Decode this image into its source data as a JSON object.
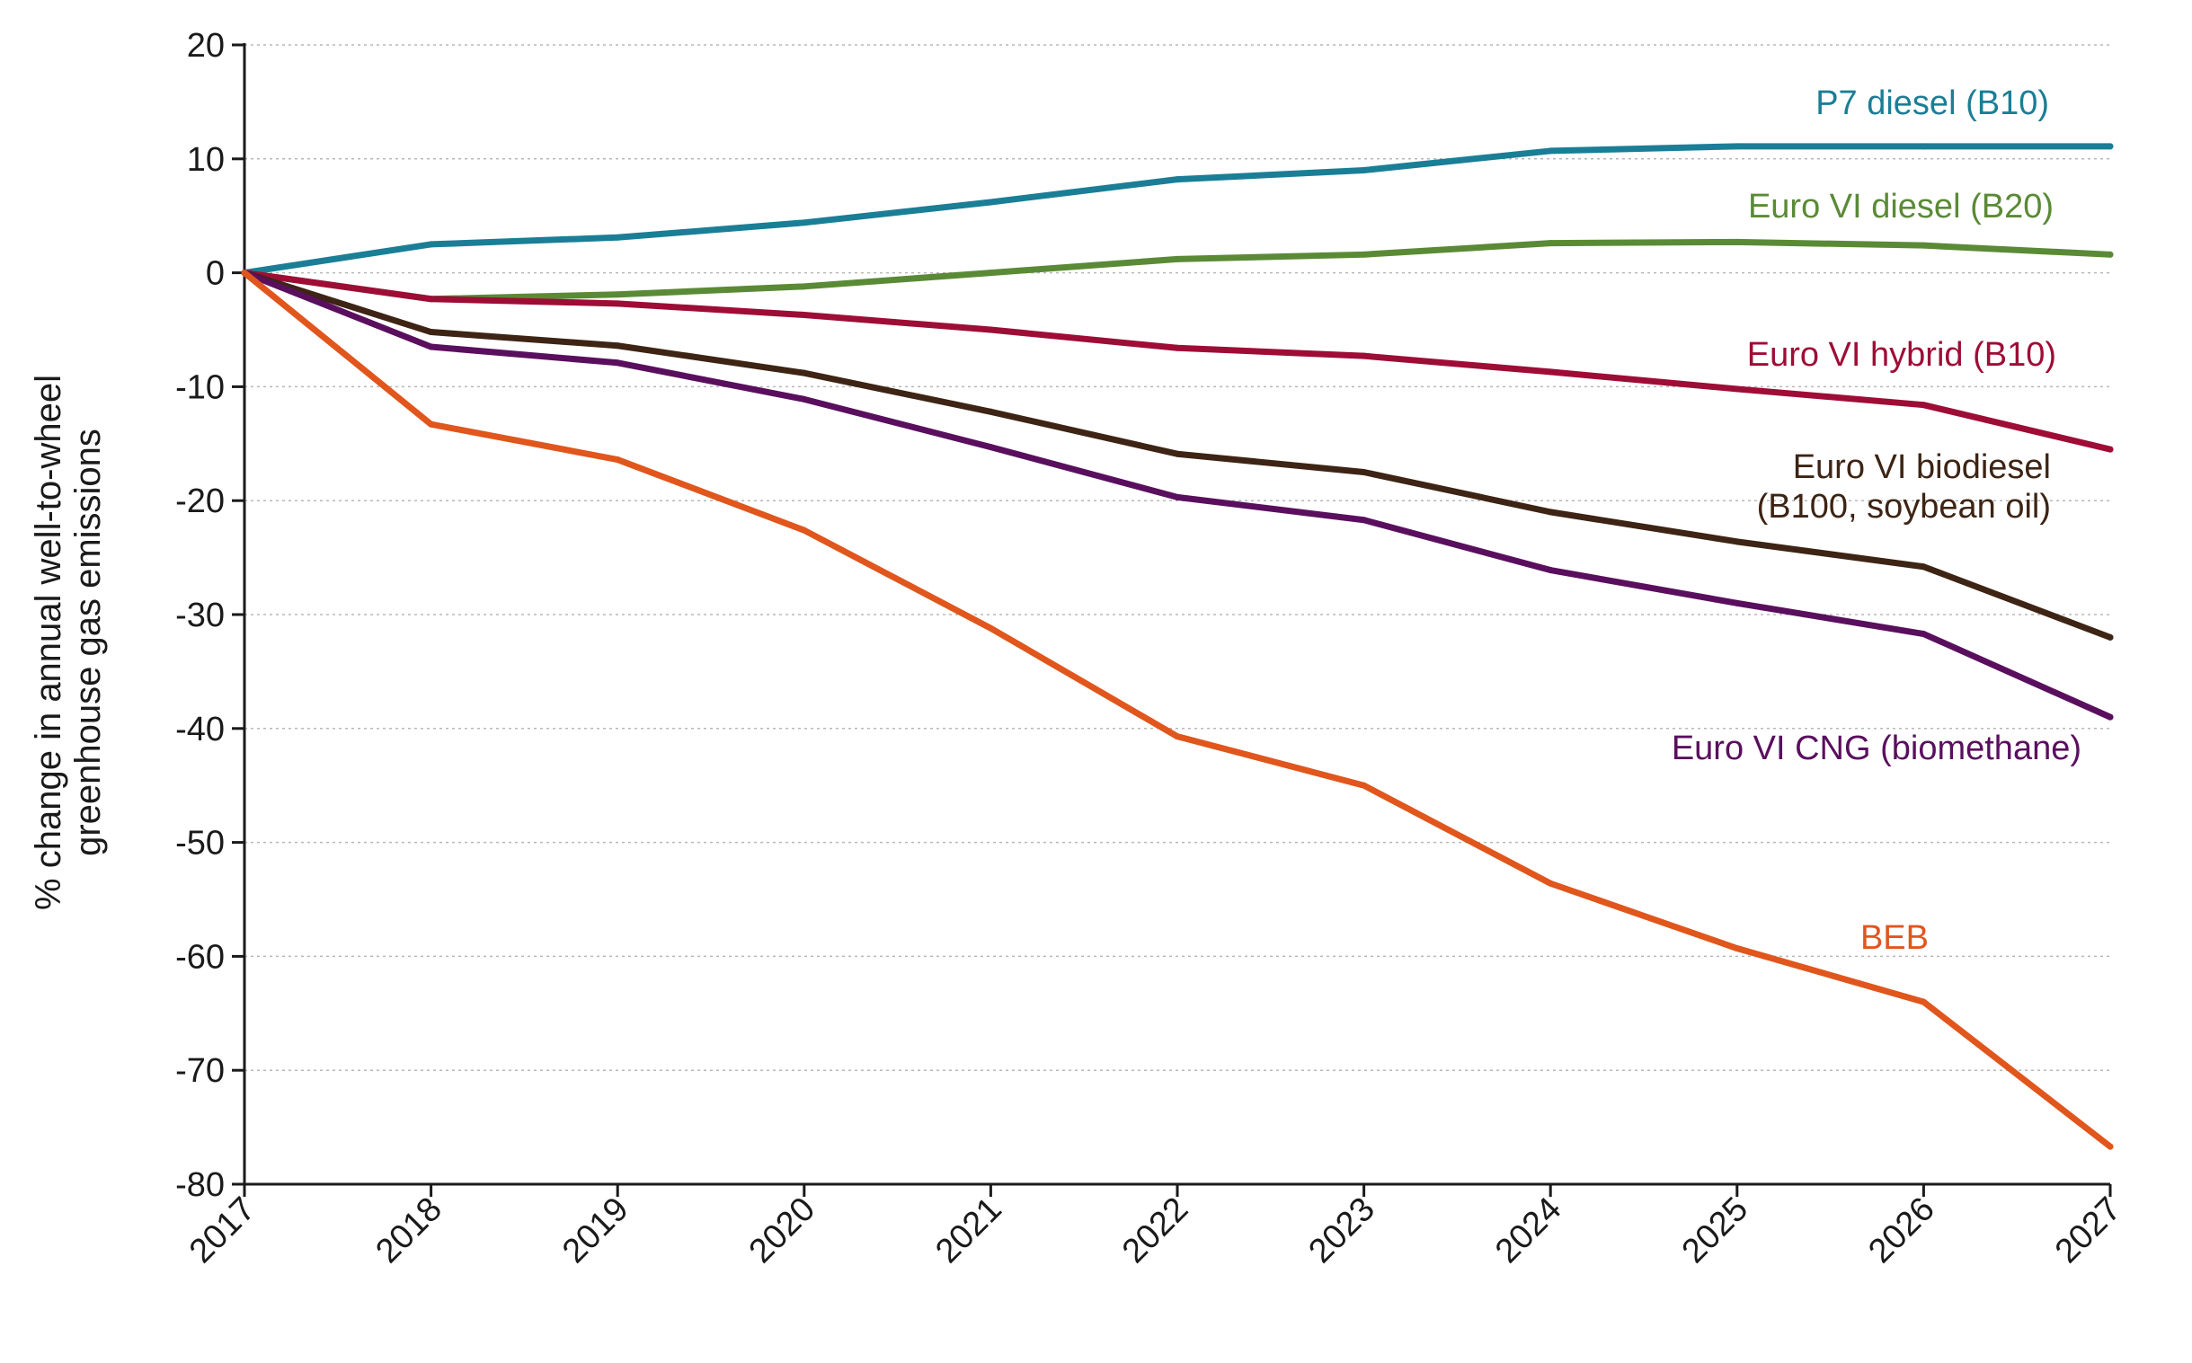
{
  "chart_data": {
    "type": "line",
    "title": "",
    "xlabel": "",
    "ylabel_lines": [
      "% change in annual well-to-wheel",
      "greenhouse gas emissions"
    ],
    "x": [
      2017,
      2018,
      2019,
      2020,
      2021,
      2022,
      2023,
      2024,
      2025,
      2026,
      2027
    ],
    "x_ticks": [
      "2017",
      "2018",
      "2019",
      "2020",
      "2021",
      "2022",
      "2023",
      "2024",
      "2025",
      "2026",
      "2027"
    ],
    "ylim": [
      -80,
      20
    ],
    "y_ticks": [
      20,
      10,
      0,
      -10,
      -20,
      -30,
      -40,
      -50,
      -60,
      -70,
      -80
    ],
    "y_tick_labels": [
      "20",
      "10",
      "0",
      "-10",
      "-20",
      "-30",
      "-40",
      "-50",
      "-60",
      "-70",
      "-80"
    ],
    "grid": "horizontal-dotted",
    "series": [
      {
        "name": "P7 diesel (B10)",
        "label_lines": [
          "P7 diesel (B10)"
        ],
        "color": "#1a7e96",
        "values": [
          0,
          2.5,
          3.1,
          4.4,
          6.2,
          8.2,
          9.0,
          10.7,
          11.1,
          11.1,
          11.1
        ]
      },
      {
        "name": "Euro VI diesel (B20)",
        "label_lines": [
          "Euro VI diesel (B20)"
        ],
        "color": "#5a8a36",
        "values": [
          0,
          -2.3,
          -1.9,
          -1.2,
          0.0,
          1.2,
          1.6,
          2.6,
          2.7,
          2.4,
          1.6
        ]
      },
      {
        "name": "Euro VI hybrid (B10)",
        "label_lines": [
          "Euro VI hybrid (B10)"
        ],
        "color": "#9e0d36",
        "values": [
          0,
          -2.3,
          -2.7,
          -3.7,
          -5.0,
          -6.6,
          -7.3,
          -8.7,
          -10.2,
          -11.6,
          -15.5
        ]
      },
      {
        "name": "Euro VI biodiesel (B100, soybean oil)",
        "label_lines": [
          "Euro VI biodiesel",
          "(B100, soybean oil)"
        ],
        "color": "#3d2414",
        "values": [
          0,
          -5.2,
          -6.4,
          -8.8,
          -12.2,
          -15.9,
          -17.5,
          -21.0,
          -23.6,
          -25.8,
          -32.0
        ]
      },
      {
        "name": "Euro VI CNG (biomethane)",
        "label_lines": [
          "Euro VI CNG (biomethane)"
        ],
        "color": "#5a0f5e",
        "values": [
          0,
          -6.5,
          -7.9,
          -11.1,
          -15.3,
          -19.7,
          -21.7,
          -26.1,
          -29.0,
          -31.7,
          -39.0
        ]
      },
      {
        "name": "BEB",
        "label_lines": [
          "BEB"
        ],
        "color": "#e0561c",
        "values": [
          0,
          -13.3,
          -16.4,
          -22.6,
          -31.2,
          -40.7,
          -45.0,
          -53.6,
          -59.3,
          -64.0,
          -76.7
        ]
      }
    ]
  }
}
